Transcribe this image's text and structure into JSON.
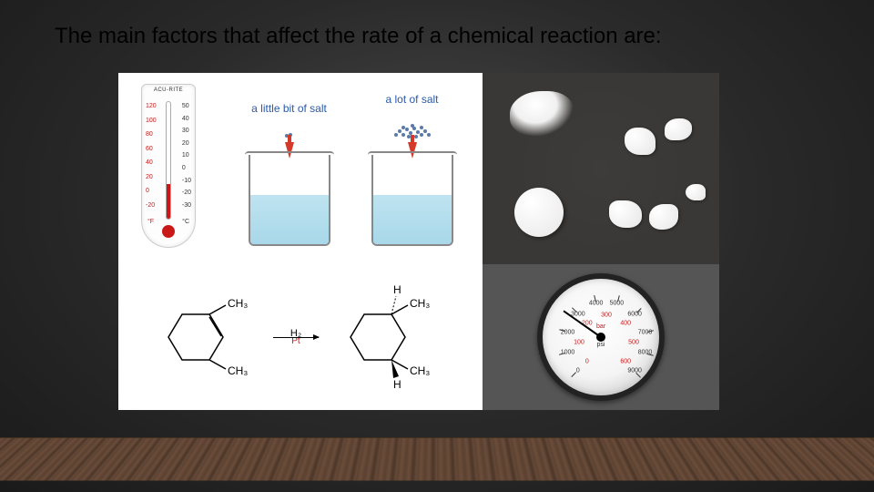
{
  "title": "The main factors that affect the rate of a chemical reaction are:",
  "thermometer": {
    "brand": "ACU-RITE",
    "left_scale": [
      "120",
      "100",
      "80",
      "60",
      "40",
      "20",
      "0",
      "-20"
    ],
    "right_scale": [
      "50",
      "40",
      "30",
      "20",
      "10",
      "0",
      "-10",
      "-20",
      "-30"
    ],
    "unit_left": "°F",
    "unit_right": "°C",
    "fill_pct": 30,
    "fill_color": "#c91818"
  },
  "beakers": {
    "label_little": "a little bit of salt",
    "label_lot": "a lot of salt",
    "water_color_top": "#bfe3f0",
    "water_color_bottom": "#a8d8ea",
    "arrow_color": "#d43a2a",
    "salt_color": "#5a7aa8"
  },
  "chemistry": {
    "reagent_top": "H₂",
    "catalyst": "Pt",
    "group": "CH₃",
    "hydrogen": "H"
  },
  "gauge": {
    "unit_inner": "bar",
    "unit_outer": "psi",
    "outer_scale": [
      "0",
      "1000",
      "2000",
      "3000",
      "4000",
      "5000",
      "6000",
      "7000",
      "8000",
      "9000"
    ],
    "inner_scale": [
      "0",
      "100",
      "200",
      "300",
      "400",
      "500",
      "600"
    ],
    "needle_angle_deg": 125,
    "ring_color": "#222222",
    "inner_color": "#c91818"
  },
  "colors": {
    "panel_bg": "#ffffff",
    "tablets_bg": "#3a3836",
    "gauge_bg": "#555555"
  }
}
